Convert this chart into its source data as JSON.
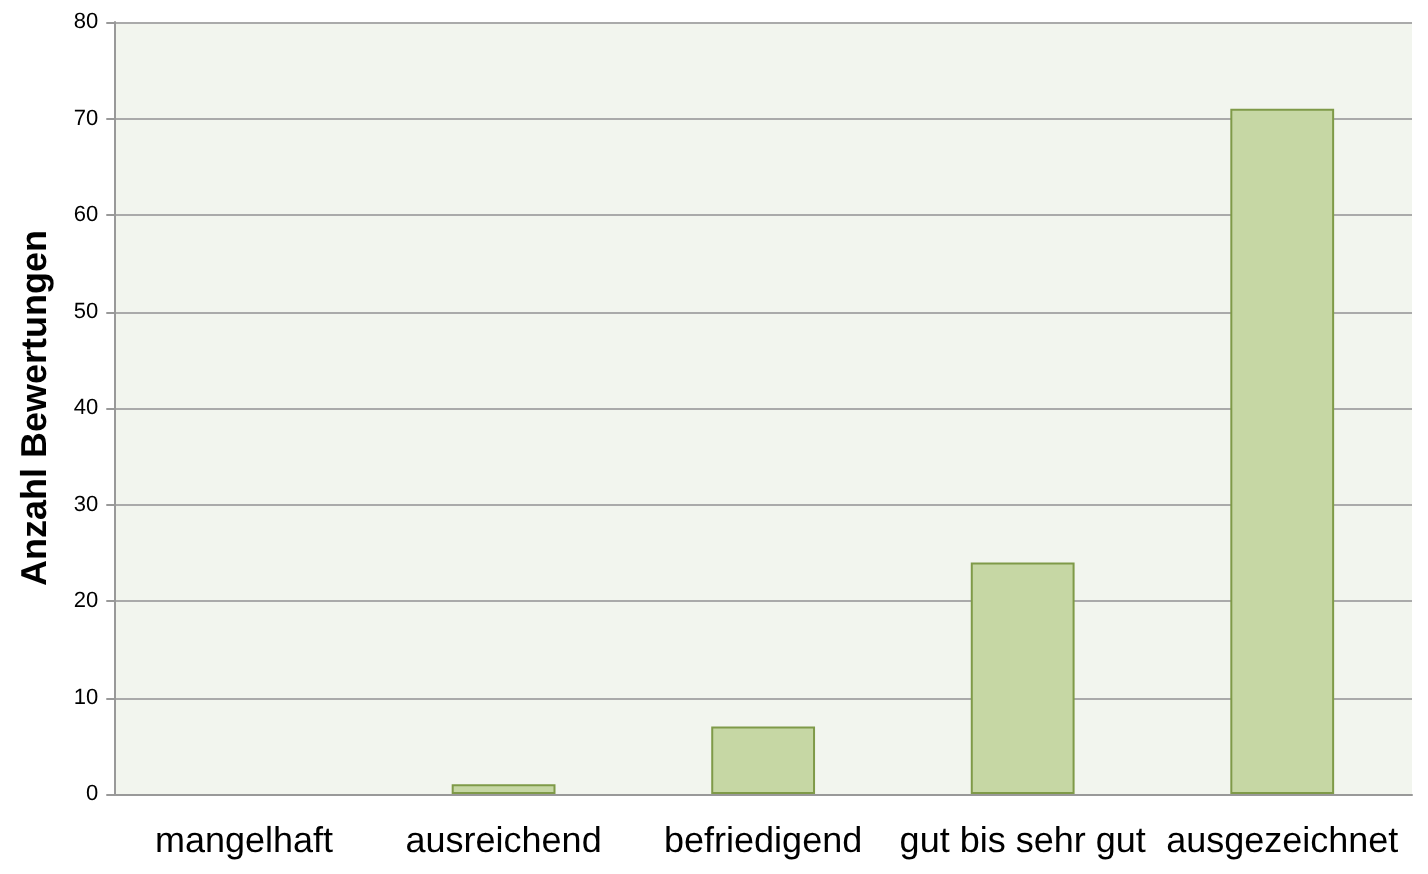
{
  "chart_data": {
    "type": "bar",
    "ylabel": "Anzahl Bewertungen",
    "categories": [
      "mangelhaft",
      "ausreichend",
      "befriedigend",
      "gut bis sehr gut",
      "ausgezeichnet"
    ],
    "values": [
      0,
      1,
      7,
      24,
      71
    ],
    "color": "#c6d7a4",
    "ylim": [
      0,
      80
    ],
    "yticks": [
      0,
      10,
      20,
      30,
      40,
      50,
      60,
      70,
      80
    ],
    "grid": "y"
  }
}
